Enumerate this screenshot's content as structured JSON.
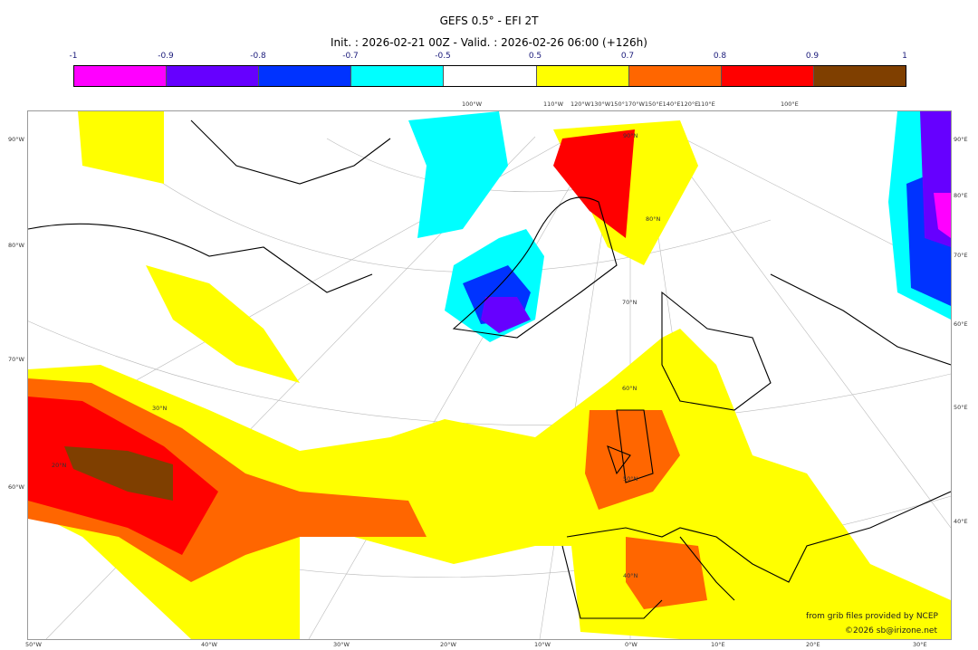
{
  "title": "GEFS 0.5° - EFI 2T",
  "subtitle": "Init. : 2026-02-21 00Z - Valid. : 2026-02-26 06:00 (+126h)",
  "colorbar": {
    "ticks": [
      "-1",
      "-0.9",
      "-0.8",
      "-0.7",
      "-0.5",
      "0.5",
      "0.7",
      "0.8",
      "0.9",
      "1"
    ],
    "colors": [
      "#ff00ff",
      "#6600ff",
      "#0033ff",
      "#00ffff",
      "#ffffff",
      "#ffff00",
      "#ff6600",
      "#ff0000",
      "#7f3f00"
    ]
  },
  "axes": {
    "top": [
      "100°W",
      "110°W",
      "120°W130°W150°170°W150°E140°E120°E",
      "110°E",
      "100°E"
    ],
    "left": [
      "90°W",
      "80°W",
      "70°W",
      "60°W"
    ],
    "right": [
      "90°E",
      "80°E",
      "70°E",
      "60°E",
      "50°E",
      "40°E"
    ],
    "bottom": [
      "50°W",
      "40°W",
      "30°W",
      "20°W",
      "10°W",
      "0°W",
      "10°E",
      "20°E",
      "30°E"
    ],
    "lat": [
      "90°N",
      "80°N",
      "70°N",
      "60°N",
      "50°N",
      "40°N",
      "30°N",
      "20°N"
    ]
  },
  "credits": {
    "line1": "from grib files provided by NCEP",
    "line2": "©2026 sb@irizone.net"
  }
}
